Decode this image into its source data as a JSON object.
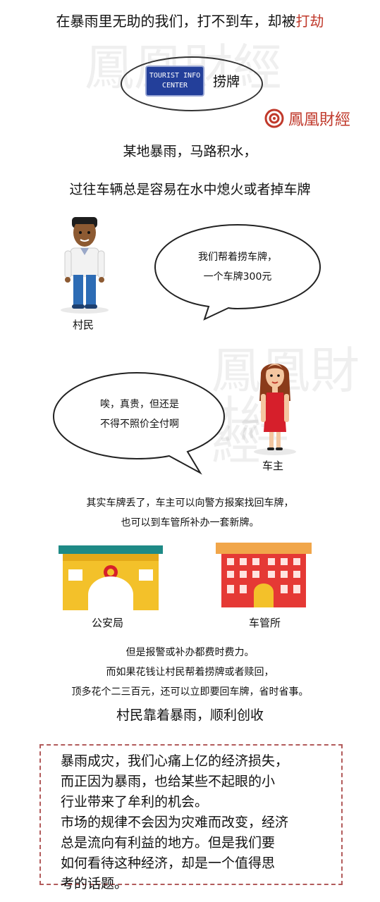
{
  "title": {
    "prefix": "在暴雨里无助的我们，打不到车，却被",
    "highlight": "打劫"
  },
  "sign": {
    "line1": "TOURIST INFO",
    "line2": "CENTER",
    "caption": "捞牌"
  },
  "brand": {
    "name": "鳳凰財經",
    "color": "#c0392b"
  },
  "intro": {
    "line1": "某地暴雨，马路积水，",
    "line2": "过往车辆总是容易在水中熄火或者掉车牌"
  },
  "villager": {
    "bubble_line1": "我们帮着捞车牌，",
    "bubble_line2": "一个车牌300元",
    "label": "村民"
  },
  "owner": {
    "bubble_line1": "唉，真贵，但还是",
    "bubble_line2": "不得不照价全付啊",
    "label": "车主"
  },
  "explain": {
    "line1": "其实车牌丢了，车主可以向警方报案找回车牌，",
    "line2": "也可以到车管所补办一套新牌。"
  },
  "buildings": {
    "police_label": "公安局",
    "dmv_label": "车管所"
  },
  "cost": {
    "line1": "但是报警或补办都费时费力。",
    "line2": "而如果花钱让村民帮着捞牌或者赎回，",
    "line3": "顶多花个二三百元，还可以立即要回车牌，省时省事。"
  },
  "subhead": "村民靠着暴雨，顺利创收",
  "summary": {
    "line1": "暴雨成灾，我们心痛上亿的经济损失，",
    "line2": "而正因为暴雨，也给某些不起眼的小",
    "line3": "行业带来了牟利的机会。",
    "line4": "市场的规律不会因为灾难而改变，经济",
    "line5": "总是流向有利益的地方。但是我们要",
    "line6": "如何看待这种经济，却是一个值得思",
    "line7": "考的话题。"
  },
  "watermark": "鳳凰財經",
  "colors": {
    "accent_red": "#c0392b",
    "police_yellow": "#f3c12a",
    "dmv_red": "#e53935",
    "sign_blue": "#233f9a"
  }
}
